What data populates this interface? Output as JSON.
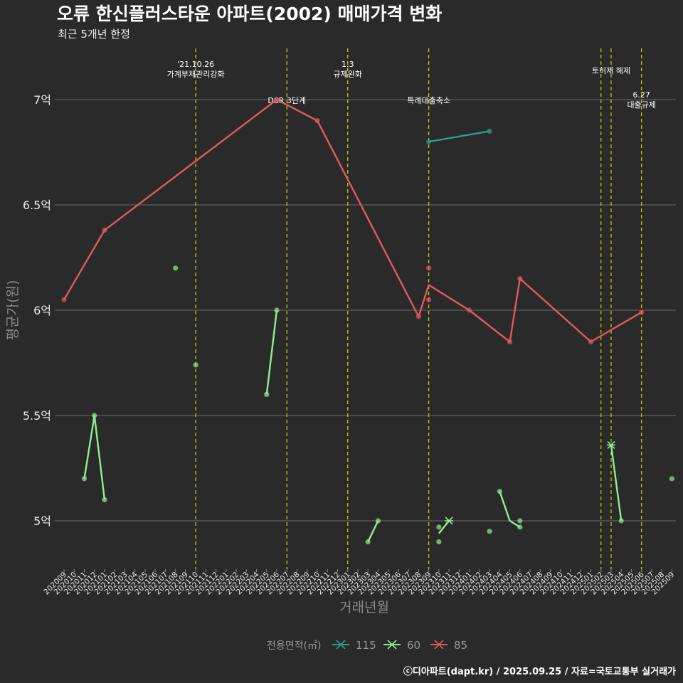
{
  "chart_data": {
    "type": "line",
    "title": "오류 한신플러스타운 아파트(2002) 매매가격 변화",
    "subtitle": "최근 5개년 한정",
    "xlabel": "거래년월",
    "ylabel": "평균가(원)",
    "caption": "ⓒ디아파트(dapt.kr) / 2025.09.25 / 자료=국토교통부 실거래가",
    "legend_title": "전용면적(㎡)",
    "legend_position": "bottom",
    "grid": true,
    "ylim": [
      4.8,
      7.23
    ],
    "y_ticks": [
      {
        "value": 5.0,
        "label": "5억"
      },
      {
        "value": 5.5,
        "label": "5.5억"
      },
      {
        "value": 6.0,
        "label": "6억"
      },
      {
        "value": 6.5,
        "label": "6.5억"
      },
      {
        "value": 7.0,
        "label": "7억"
      }
    ],
    "x_categories": [
      "202009",
      "202010",
      "202011",
      "202012",
      "202101",
      "202102",
      "202103",
      "202104",
      "202105",
      "202106",
      "202107",
      "202108",
      "202109",
      "202110",
      "202111",
      "202112",
      "202201",
      "202202",
      "202203",
      "202204",
      "202205",
      "202206",
      "202207",
      "202208",
      "202209",
      "202210",
      "202211",
      "202212",
      "202301",
      "202302",
      "202303",
      "202304",
      "202305",
      "202306",
      "202307",
      "202308",
      "202309",
      "202310",
      "202311",
      "202312",
      "202401",
      "202402",
      "202403",
      "202404",
      "202405",
      "202406",
      "202407",
      "202408",
      "202409",
      "202410",
      "202411",
      "202412",
      "202501",
      "202502",
      "202503",
      "202504",
      "202505",
      "202506",
      "202507",
      "202508",
      "202509"
    ],
    "series": [
      {
        "name": "115",
        "color": "#2a9d8f",
        "line": [
          [
            "202309",
            6.8
          ],
          [
            "202403",
            6.85
          ]
        ],
        "points": [
          [
            "202309",
            6.8
          ],
          [
            "202403",
            6.85
          ]
        ],
        "highlight": null
      },
      {
        "name": "60",
        "color": "#90ee90",
        "line_segments": [
          [
            [
              "202011",
              5.2
            ],
            [
              "202012",
              5.5
            ],
            [
              "202101",
              5.1
            ]
          ],
          [
            [
              "202205",
              5.6
            ],
            [
              "202206",
              6.0
            ]
          ],
          [
            [
              "202303",
              4.9
            ],
            [
              "202304",
              5.0
            ]
          ],
          [
            [
              "202310",
              4.94
            ],
            [
              "202311",
              5.0
            ]
          ],
          [
            [
              "202404",
              5.14
            ],
            [
              "202405",
              5.0
            ],
            [
              "202406",
              4.97
            ]
          ],
          [
            [
              "202503",
              5.36
            ],
            [
              "202504",
              5.0
            ]
          ]
        ],
        "points": [
          [
            "202011",
            5.2
          ],
          [
            "202012",
            5.5
          ],
          [
            "202101",
            5.1
          ],
          [
            "202108",
            6.2
          ],
          [
            "202110",
            5.74
          ],
          [
            "202205",
            5.6
          ],
          [
            "202206",
            6.0
          ],
          [
            "202303",
            4.9
          ],
          [
            "202304",
            5.0
          ],
          [
            "202310",
            4.97
          ],
          [
            "202310",
            4.9
          ],
          [
            "202403",
            4.95
          ],
          [
            "202404",
            5.14
          ],
          [
            "202406",
            5.0
          ],
          [
            "202406",
            4.97
          ],
          [
            "202504",
            5.0
          ],
          [
            "202509",
            5.2
          ]
        ],
        "highlight": [
          [
            "202311",
            5.0
          ],
          [
            "202503",
            5.36
          ]
        ]
      },
      {
        "name": "85",
        "color": "#e05a5a",
        "line": [
          [
            "202009",
            6.05
          ],
          [
            "202101",
            6.38
          ],
          [
            "202206",
            7.0
          ],
          [
            "202210",
            6.9
          ],
          [
            "202308",
            5.97
          ],
          [
            "202309",
            6.12
          ],
          [
            "202401",
            6.0
          ],
          [
            "202405",
            5.85
          ],
          [
            "202406",
            6.15
          ],
          [
            "202501",
            5.85
          ],
          [
            "202506",
            5.99
          ]
        ],
        "points": [
          [
            "202009",
            6.05
          ],
          [
            "202101",
            6.38
          ],
          [
            "202206",
            7.0
          ],
          [
            "202210",
            6.9
          ],
          [
            "202308",
            5.97
          ],
          [
            "202309",
            6.2
          ],
          [
            "202309",
            6.05
          ],
          [
            "202401",
            6.0
          ],
          [
            "202405",
            5.85
          ],
          [
            "202406",
            6.15
          ],
          [
            "202501",
            5.85
          ],
          [
            "202506",
            5.99
          ]
        ],
        "highlight": null
      }
    ],
    "events": [
      {
        "x": "202110",
        "lines": [
          "'21.10.26",
          "가계부채관리강화"
        ],
        "pos": "upper"
      },
      {
        "x": "202207",
        "lines": [
          "DSR 3단계"
        ],
        "pos": "mid"
      },
      {
        "x": "202301",
        "lines": [
          "1.3",
          "규제완화"
        ],
        "pos": "upper"
      },
      {
        "x": "202309",
        "lines": [
          "특례대출축소"
        ],
        "pos": "mid"
      },
      {
        "x": "202502",
        "lines": [],
        "pos": "none"
      },
      {
        "x": "202503",
        "lines": [
          "토허제 해제"
        ],
        "pos": "top"
      },
      {
        "x": "202506",
        "lines": [
          "6.27",
          "대출규제"
        ],
        "pos": "low"
      }
    ],
    "colors": {
      "background": "#2b2a2b",
      "grid": "#6b6b6b",
      "event_line": "#d4d400"
    }
  }
}
